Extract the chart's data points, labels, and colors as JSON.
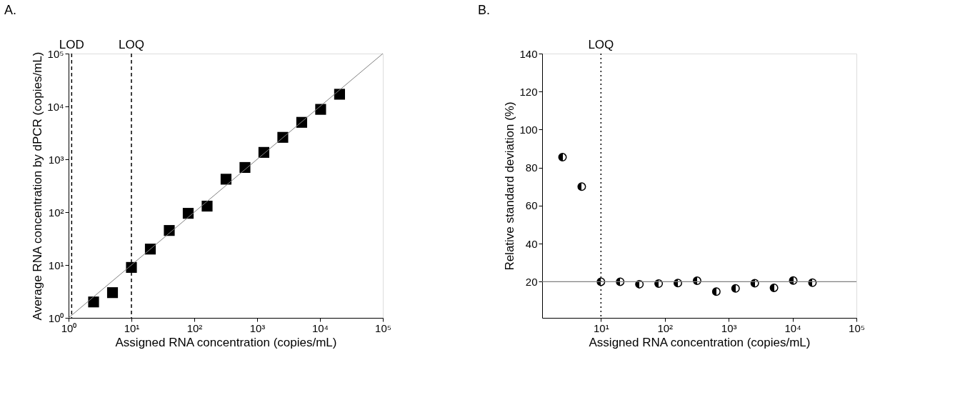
{
  "chart_data": [
    {
      "type": "scatter",
      "title": "A.",
      "xlabel": "Assigned RNA concentration (copies/mL)",
      "ylabel": "Average RNA concentration by dPCR (copies/mL)",
      "log": "xy",
      "marker": "square",
      "grid": false,
      "xlim": [
        1,
        100000
      ],
      "ylim": [
        1,
        100000
      ],
      "xticks": [
        {
          "value": 1,
          "label": "10⁰"
        },
        {
          "value": 10,
          "label": "10¹"
        },
        {
          "value": 100,
          "label": "10²"
        },
        {
          "value": 1000,
          "label": "10³"
        },
        {
          "value": 10000,
          "label": "10⁴"
        },
        {
          "value": 100000,
          "label": "10⁵"
        }
      ],
      "yticks": [
        {
          "value": 1,
          "label": "10⁰"
        },
        {
          "value": 10,
          "label": "10¹"
        },
        {
          "value": 100,
          "label": "10²"
        },
        {
          "value": 1000,
          "label": "10³"
        },
        {
          "value": 10000,
          "label": "10⁴"
        },
        {
          "value": 100000,
          "label": "10⁵"
        }
      ],
      "series": [
        {
          "color": "#000000",
          "x": [
            2.5,
            5,
            10,
            20,
            40,
            80,
            160,
            320,
            640,
            1280,
            2560,
            5120,
            10240,
            20480
          ],
          "values": [
            2,
            3,
            9,
            20,
            45,
            95,
            130,
            420,
            700,
            1350,
            2600,
            5000,
            8800,
            17000
          ]
        },
        {
          "type": "line",
          "color": "#808080",
          "line_style": "solid",
          "marker": "none",
          "x": [
            1,
            100000
          ],
          "values": [
            1,
            100000
          ]
        }
      ],
      "ref_lines": [
        {
          "axis": "x",
          "value": 1.12,
          "label": "LOD",
          "line_style": "dashed",
          "color": "#000000"
        },
        {
          "axis": "x",
          "value": 10,
          "label": "LOQ",
          "line_style": "dashed",
          "color": "#000000"
        }
      ]
    },
    {
      "type": "scatter",
      "title": "B.",
      "xlabel": "Assigned RNA concentration (copies/mL)",
      "ylabel": "Relative standard deviation (%)",
      "log": "x",
      "marker": "circle",
      "grid": false,
      "xlim": [
        1.2,
        100000
      ],
      "ylim": [
        1,
        140
      ],
      "xticks": [
        {
          "value": 10,
          "label": "10¹"
        },
        {
          "value": 100,
          "label": "10²"
        },
        {
          "value": 1000,
          "label": "10³"
        },
        {
          "value": 10000,
          "label": "10⁴"
        },
        {
          "value": 100000,
          "label": "10⁵"
        }
      ],
      "yticks": [
        20,
        40,
        60,
        80,
        100,
        120,
        140
      ],
      "series": [
        {
          "color": "#000000",
          "x": [
            2.5,
            5,
            10,
            20,
            40,
            80,
            160,
            320,
            640,
            1280,
            2560,
            5120,
            10240,
            20480
          ],
          "values": [
            85.5,
            70,
            20,
            20,
            18.7,
            19,
            19.3,
            20.5,
            14.8,
            16.5,
            19.2,
            16.8,
            20.6,
            19.5
          ]
        }
      ],
      "ref_lines": [
        {
          "axis": "x",
          "value": 10,
          "label": "LOQ",
          "line_style": "dotted",
          "color": "#000000"
        },
        {
          "axis": "y",
          "value": 20,
          "label": null,
          "line_style": "solid",
          "color": "#808080"
        }
      ]
    }
  ]
}
